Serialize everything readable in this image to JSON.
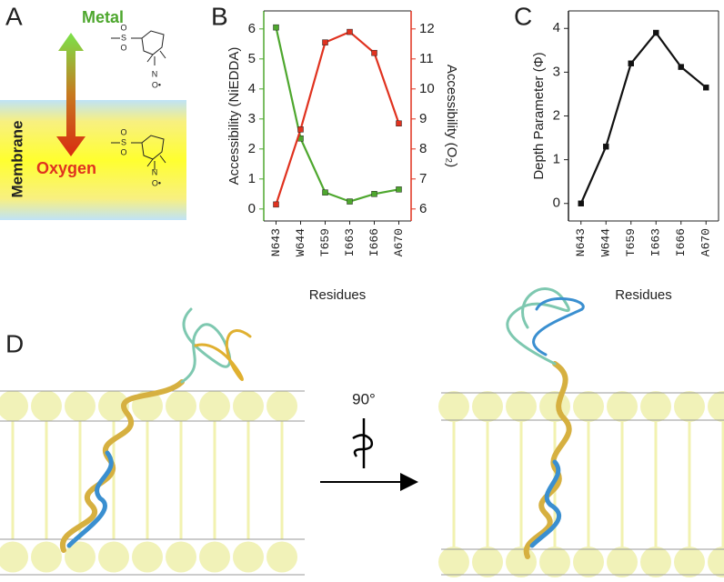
{
  "panel_labels": [
    "A",
    "B",
    "C",
    "D"
  ],
  "diagram": {
    "metal": "Metal",
    "oxygen": "Oxygen",
    "membrane": "Membrane",
    "structure_atoms": [
      "S",
      "O",
      "O",
      "N",
      "O•"
    ],
    "rotation": "90°"
  },
  "chart_data": [
    {
      "type": "line",
      "categories": [
        "N643",
        "W644",
        "T659",
        "I663",
        "I666",
        "A670"
      ],
      "x_label": "Residues",
      "y_label": "Accessibility (NiEDDA)",
      "y2_label": "Accessibility (O₂)",
      "ylim": [
        -0.4,
        6.6
      ],
      "yticks": [
        0,
        1,
        2,
        3,
        4,
        5,
        6
      ],
      "y2lim": [
        5.6,
        12.6
      ],
      "y2ticks": [
        6,
        7,
        8,
        9,
        10,
        11,
        12
      ],
      "series": [
        {
          "color": "#4ea72e",
          "values": [
            6.05,
            2.35,
            0.55,
            0.25,
            0.5,
            0.65
          ]
        },
        {
          "color": "#e0321f",
          "axis": "y2",
          "values": [
            6.15,
            8.65,
            11.55,
            11.9,
            11.2,
            8.85
          ]
        }
      ]
    },
    {
      "type": "line",
      "categories": [
        "N643",
        "W644",
        "T659",
        "I663",
        "I666",
        "A670"
      ],
      "x_label": "Residues",
      "y_label": "Depth Parameter (Φ)",
      "ylim": [
        -0.4,
        4.4
      ],
      "yticks": [
        0,
        1,
        2,
        3,
        4
      ],
      "series": [
        {
          "color": "#111111",
          "values": [
            0,
            1.3,
            3.2,
            3.9,
            3.12,
            2.65
          ]
        }
      ]
    }
  ]
}
